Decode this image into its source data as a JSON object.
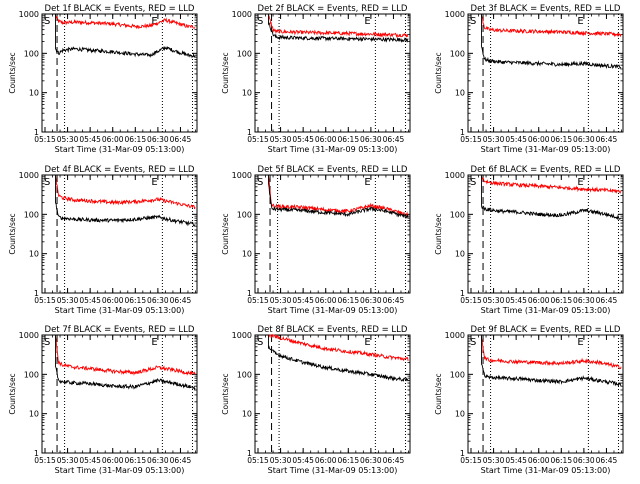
{
  "figure": {
    "xlabel": "Start Time (31-Mar-09 05:13:00)",
    "ylabel": "Counts/sec",
    "start_marker": "S",
    "end_marker": "E",
    "colors": {
      "events": "#000000",
      "lld": "#ff0000",
      "axes": "#000000"
    }
  },
  "chart_data": [
    {
      "type": "line",
      "title": "Det 1f BLACK = Events, RED = LLD",
      "yscale": "log",
      "ylim": [
        1,
        1000
      ],
      "xlim": [
        "05:13",
        "06:56"
      ],
      "x_ticks": [
        "05:15",
        "05:30",
        "05:45",
        "06:00",
        "06:15",
        "06:30",
        "06:45"
      ],
      "y_ticks": [
        "1",
        "10",
        "100",
        "1000"
      ],
      "markers": {
        "start_dashed": "05:23",
        "start_dotted": "05:28",
        "end_dotted_1": "06:33",
        "end_dotted_2": "06:53"
      },
      "series": [
        {
          "name": "LLD",
          "color": "#ff0000",
          "x": [
            "05:22",
            "05:24",
            "05:27",
            "05:35",
            "05:45",
            "06:00",
            "06:15",
            "06:25",
            "06:35",
            "06:40",
            "06:50",
            "06:55"
          ],
          "y": [
            900,
            650,
            600,
            620,
            600,
            560,
            480,
            500,
            700,
            620,
            480,
            470
          ]
        },
        {
          "name": "Events",
          "color": "#000000",
          "x": [
            "05:22",
            "05:24",
            "05:27",
            "05:35",
            "05:45",
            "06:00",
            "06:15",
            "06:25",
            "06:35",
            "06:40",
            "06:50",
            "06:55"
          ],
          "y": [
            130,
            100,
            120,
            130,
            120,
            110,
            95,
            90,
            140,
            120,
            90,
            85
          ]
        }
      ]
    },
    {
      "type": "line",
      "title": "Det 2f BLACK = Events, RED = LLD",
      "yscale": "log",
      "ylim": [
        1,
        1000
      ],
      "xlim": [
        "05:13",
        "06:56"
      ],
      "x_ticks": [
        "05:15",
        "05:30",
        "05:45",
        "06:00",
        "06:15",
        "06:30",
        "06:45"
      ],
      "y_ticks": [
        "1",
        "10",
        "100",
        "1000"
      ],
      "markers": {
        "start_dashed": "05:24",
        "start_dotted": "05:29",
        "end_dotted_1": "06:33",
        "end_dotted_2": "06:53"
      },
      "series": [
        {
          "name": "LLD",
          "color": "#ff0000",
          "x": [
            "05:22",
            "05:25",
            "05:27",
            "05:35",
            "05:45",
            "06:00",
            "06:15",
            "06:30",
            "06:40",
            "06:55"
          ],
          "y": [
            900,
            400,
            360,
            350,
            340,
            330,
            320,
            310,
            300,
            290
          ]
        },
        {
          "name": "Events",
          "color": "#000000",
          "x": [
            "05:22",
            "05:25",
            "05:27",
            "05:35",
            "05:45",
            "06:00",
            "06:15",
            "06:30",
            "06:40",
            "06:55"
          ],
          "y": [
            600,
            300,
            260,
            250,
            245,
            240,
            235,
            230,
            225,
            220
          ]
        }
      ]
    },
    {
      "type": "line",
      "title": "Det 3f BLACK = Events, RED = LLD",
      "yscale": "log",
      "ylim": [
        1,
        1000
      ],
      "xlim": [
        "05:13",
        "06:56"
      ],
      "x_ticks": [
        "05:15",
        "05:30",
        "05:45",
        "06:00",
        "06:15",
        "06:30",
        "06:45"
      ],
      "y_ticks": [
        "1",
        "10",
        "100",
        "1000"
      ],
      "markers": {
        "start_dashed": "05:23",
        "start_dotted": "05:28",
        "end_dotted_1": "06:33",
        "end_dotted_2": "06:53"
      },
      "series": [
        {
          "name": "LLD",
          "color": "#ff0000",
          "x": [
            "05:22",
            "05:24",
            "05:27",
            "05:35",
            "05:45",
            "06:00",
            "06:15",
            "06:30",
            "06:40",
            "06:55"
          ],
          "y": [
            900,
            450,
            400,
            380,
            370,
            360,
            350,
            330,
            320,
            300
          ]
        },
        {
          "name": "Events",
          "color": "#000000",
          "x": [
            "05:22",
            "05:24",
            "05:27",
            "05:35",
            "05:45",
            "06:00",
            "06:15",
            "06:30",
            "06:40",
            "06:55"
          ],
          "y": [
            150,
            70,
            65,
            60,
            58,
            55,
            52,
            55,
            50,
            45
          ]
        }
      ]
    },
    {
      "type": "line",
      "title": "Det 4f BLACK = Events, RED = LLD",
      "yscale": "log",
      "ylim": [
        1,
        1000
      ],
      "xlim": [
        "05:13",
        "06:56"
      ],
      "x_ticks": [
        "05:15",
        "05:30",
        "05:45",
        "06:00",
        "06:15",
        "06:30",
        "06:45"
      ],
      "y_ticks": [
        "1",
        "10",
        "100",
        "1000"
      ],
      "markers": {
        "start_dashed": "05:23",
        "start_dotted": "05:28",
        "end_dotted_1": "06:33",
        "end_dotted_2": "06:53"
      },
      "series": [
        {
          "name": "LLD",
          "color": "#ff0000",
          "x": [
            "05:22",
            "05:24",
            "05:27",
            "05:35",
            "05:45",
            "06:00",
            "06:15",
            "06:30",
            "06:40",
            "06:55"
          ],
          "y": [
            900,
            300,
            260,
            230,
            220,
            200,
            210,
            240,
            200,
            150
          ]
        },
        {
          "name": "Events",
          "color": "#000000",
          "x": [
            "05:22",
            "05:24",
            "05:27",
            "05:35",
            "05:45",
            "06:00",
            "06:15",
            "06:30",
            "06:40",
            "06:55"
          ],
          "y": [
            200,
            85,
            80,
            75,
            72,
            70,
            75,
            85,
            70,
            55
          ]
        }
      ]
    },
    {
      "type": "line",
      "title": "Det 5f BLACK = Events, RED = LLD",
      "yscale": "log",
      "ylim": [
        1,
        1000
      ],
      "xlim": [
        "05:13",
        "06:56"
      ],
      "x_ticks": [
        "05:15",
        "05:30",
        "05:45",
        "06:00",
        "06:15",
        "06:30",
        "06:45"
      ],
      "y_ticks": [
        "1",
        "10",
        "100",
        "1000"
      ],
      "markers": {
        "start_dashed": "05:23",
        "start_dotted": "05:28",
        "end_dotted_1": "06:33",
        "end_dotted_2": "06:53"
      },
      "series": [
        {
          "name": "LLD",
          "color": "#ff0000",
          "x": [
            "05:22",
            "05:24",
            "05:27",
            "05:35",
            "05:45",
            "06:00",
            "06:15",
            "06:30",
            "06:40",
            "06:55"
          ],
          "y": [
            900,
            170,
            160,
            155,
            150,
            130,
            120,
            165,
            140,
            95
          ]
        },
        {
          "name": "Events",
          "color": "#000000",
          "x": [
            "05:22",
            "05:24",
            "05:27",
            "05:35",
            "05:45",
            "06:00",
            "06:15",
            "06:30",
            "06:40",
            "06:55"
          ],
          "y": [
            600,
            140,
            135,
            130,
            125,
            110,
            100,
            140,
            120,
            85
          ]
        }
      ]
    },
    {
      "type": "line",
      "title": "Det 6f BLACK = Events, RED = LLD",
      "yscale": "log",
      "ylim": [
        1,
        1000
      ],
      "xlim": [
        "05:13",
        "06:56"
      ],
      "x_ticks": [
        "05:15",
        "05:30",
        "05:45",
        "06:00",
        "06:15",
        "06:30",
        "06:45"
      ],
      "y_ticks": [
        "1",
        "10",
        "100",
        "1000"
      ],
      "markers": {
        "start_dashed": "05:23",
        "start_dotted": "05:28",
        "end_dotted_1": "06:33",
        "end_dotted_2": "06:53"
      },
      "series": [
        {
          "name": "LLD",
          "color": "#ff0000",
          "x": [
            "05:22",
            "05:24",
            "05:27",
            "05:35",
            "05:45",
            "06:00",
            "06:15",
            "06:30",
            "06:40",
            "06:55"
          ],
          "y": [
            900,
            700,
            650,
            600,
            560,
            520,
            480,
            440,
            420,
            380
          ]
        },
        {
          "name": "Events",
          "color": "#000000",
          "x": [
            "05:22",
            "05:24",
            "05:27",
            "05:35",
            "05:45",
            "06:00",
            "06:15",
            "06:30",
            "06:40",
            "06:55"
          ],
          "y": [
            160,
            140,
            130,
            120,
            115,
            100,
            95,
            125,
            110,
            80
          ]
        }
      ]
    },
    {
      "type": "line",
      "title": "Det 7f BLACK = Events, RED = LLD",
      "yscale": "log",
      "ylim": [
        1,
        1000
      ],
      "xlim": [
        "05:13",
        "06:56"
      ],
      "x_ticks": [
        "05:15",
        "05:30",
        "05:45",
        "06:00",
        "06:15",
        "06:30",
        "06:45"
      ],
      "y_ticks": [
        "1",
        "10",
        "100",
        "1000"
      ],
      "markers": {
        "start_dashed": "05:23",
        "start_dotted": "05:28",
        "end_dotted_1": "06:33",
        "end_dotted_2": "06:53"
      },
      "series": [
        {
          "name": "LLD",
          "color": "#ff0000",
          "x": [
            "05:22",
            "05:24",
            "05:27",
            "05:35",
            "05:45",
            "06:00",
            "06:15",
            "06:30",
            "06:40",
            "06:55"
          ],
          "y": [
            900,
            200,
            170,
            150,
            140,
            120,
            110,
            150,
            130,
            100
          ]
        },
        {
          "name": "Events",
          "color": "#000000",
          "x": [
            "05:22",
            "05:24",
            "05:27",
            "05:35",
            "05:45",
            "06:00",
            "06:15",
            "06:30",
            "06:40",
            "06:55"
          ],
          "y": [
            150,
            70,
            65,
            60,
            58,
            50,
            48,
            70,
            60,
            45
          ]
        }
      ]
    },
    {
      "type": "line",
      "title": "Det 8f BLACK = Events, RED = LLD",
      "yscale": "log",
      "ylim": [
        1,
        1000
      ],
      "xlim": [
        "05:13",
        "06:56"
      ],
      "x_ticks": [
        "05:15",
        "05:30",
        "05:45",
        "06:00",
        "06:15",
        "06:30",
        "06:45"
      ],
      "y_ticks": [
        "1",
        "10",
        "100",
        "1000"
      ],
      "markers": {
        "start_dashed": "05:24",
        "start_dotted": "05:29",
        "end_dotted_1": "06:33",
        "end_dotted_2": "06:53"
      },
      "series": [
        {
          "name": "LLD",
          "color": "#ff0000",
          "x": [
            "05:22",
            "05:25",
            "05:27",
            "05:35",
            "05:45",
            "06:00",
            "06:15",
            "06:30",
            "06:40",
            "06:55"
          ],
          "y": [
            900,
            1000,
            900,
            750,
            600,
            450,
            380,
            320,
            280,
            240
          ]
        },
        {
          "name": "Events",
          "color": "#000000",
          "x": [
            "05:22",
            "05:25",
            "05:27",
            "05:35",
            "05:45",
            "06:00",
            "06:15",
            "06:30",
            "06:40",
            "06:55"
          ],
          "y": [
            500,
            380,
            330,
            260,
            200,
            150,
            120,
            100,
            85,
            70
          ]
        }
      ]
    },
    {
      "type": "line",
      "title": "Det 9f BLACK = Events, RED = LLD",
      "yscale": "log",
      "ylim": [
        1,
        1000
      ],
      "xlim": [
        "05:13",
        "06:56"
      ],
      "x_ticks": [
        "05:15",
        "05:30",
        "05:45",
        "06:00",
        "06:15",
        "06:30",
        "06:45"
      ],
      "y_ticks": [
        "1",
        "10",
        "100",
        "1000"
      ],
      "markers": {
        "start_dashed": "05:23",
        "start_dotted": "05:28",
        "end_dotted_1": "06:33",
        "end_dotted_2": "06:53"
      },
      "series": [
        {
          "name": "LLD",
          "color": "#ff0000",
          "x": [
            "05:22",
            "05:24",
            "05:27",
            "05:35",
            "05:45",
            "06:00",
            "06:15",
            "06:30",
            "06:40",
            "06:55"
          ],
          "y": [
            900,
            260,
            230,
            220,
            210,
            200,
            190,
            220,
            200,
            150
          ]
        },
        {
          "name": "Events",
          "color": "#000000",
          "x": [
            "05:22",
            "05:24",
            "05:27",
            "05:35",
            "05:45",
            "06:00",
            "06:15",
            "06:30",
            "06:40",
            "06:55"
          ],
          "y": [
            200,
            90,
            85,
            80,
            78,
            70,
            65,
            80,
            70,
            55
          ]
        }
      ]
    }
  ]
}
